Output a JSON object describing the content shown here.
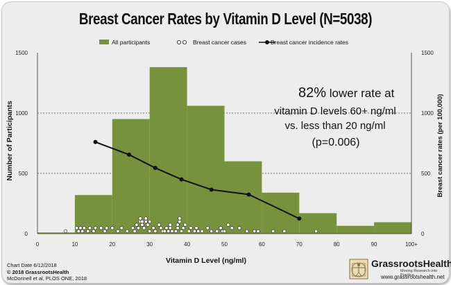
{
  "title": "Breast Cancer Rates by Vitamin D Level (N=5038)",
  "colors": {
    "bar": "#76923c",
    "line": "#111111",
    "dot_fill": "#ffffff",
    "background": "#ededed"
  },
  "annotation": {
    "percent": "82%",
    "line1_rest": " lower rate at",
    "line2": "vitamin D levels 60+ ng/ml",
    "line3": "vs. less than 20 ng/ml",
    "line4": "(p=0.006)"
  },
  "footer": {
    "chart_date": "Chart Date 6/12/2018",
    "copyright": "© 2018 GrassrootsHealth",
    "citation": "McDonnell et al, PLOS ONE, 2018"
  },
  "logo": {
    "icon": "vitruvian-man-icon",
    "name": "GrassrootsHealth",
    "tagline": "Moving Research into Practice",
    "url": "www.grassrootshealth.net"
  },
  "chart_data": {
    "type": "bar",
    "xlabel": "Vitamin D Level (ng/ml)",
    "ylabel_left": "Number of Participants",
    "ylabel_right": "Breast cancer rates (per 100,000)",
    "xlim": [
      0,
      100
    ],
    "ylim_left": [
      0,
      1500
    ],
    "ylim_right": [
      0,
      1500
    ],
    "x_ticks": [
      "0",
      "10",
      "20",
      "30",
      "40",
      "50",
      "60",
      "70",
      "80",
      "90",
      "100+"
    ],
    "x_tick_values": [
      0,
      10,
      20,
      30,
      40,
      50,
      60,
      70,
      80,
      90,
      100
    ],
    "y_ticks_left": [
      "0",
      "500",
      "1000",
      "1500"
    ],
    "y_ticks_right": [
      "0",
      "500",
      "1000",
      "1500"
    ],
    "y_tick_values": [
      0,
      500,
      1000,
      1500
    ],
    "grid": "dashed horizontal at 500, 1000",
    "legend_position": "top",
    "legend": [
      "All participants",
      "Breast cancer cases",
      "Breast cancer incidence rates"
    ],
    "histogram": {
      "name": "All participants",
      "bins": [
        {
          "x0": 0,
          "x1": 10,
          "value": 10
        },
        {
          "x0": 10,
          "x1": 20,
          "value": 320
        },
        {
          "x0": 20,
          "x1": 30,
          "value": 950
        },
        {
          "x0": 30,
          "x1": 40,
          "value": 1380
        },
        {
          "x0": 40,
          "x1": 50,
          "value": 1060
        },
        {
          "x0": 50,
          "x1": 60,
          "value": 600
        },
        {
          "x0": 60,
          "x1": 70,
          "value": 340
        },
        {
          "x0": 70,
          "x1": 80,
          "value": 170
        },
        {
          "x0": 80,
          "x1": 90,
          "value": 65
        },
        {
          "x0": 90,
          "x1": 100,
          "value": 95
        }
      ]
    },
    "incidence_rates": {
      "name": "Breast cancer incidence rates",
      "x": [
        15.5,
        24.5,
        31.5,
        38.5,
        46.5,
        56.5,
        70
      ],
      "y": [
        760,
        655,
        545,
        450,
        365,
        325,
        125
      ]
    },
    "cases": {
      "name": "Breast cancer cases",
      "x": [
        7.5,
        10.5,
        11,
        11.5,
        12,
        12.5,
        13.5,
        14,
        15,
        15.5,
        17,
        18,
        18.5,
        20,
        21.5,
        22.5,
        24,
        25.5,
        26,
        26.5,
        27,
        27.5,
        27.5,
        28,
        28,
        28.5,
        29,
        29,
        29.5,
        30,
        30,
        31,
        31.5,
        32.5,
        33,
        33.5,
        34,
        34.5,
        35,
        35.5,
        35.5,
        36,
        37,
        37.5,
        37.5,
        38,
        38,
        38.5,
        39,
        39.5,
        40.5,
        41,
        42,
        42.5,
        43,
        44,
        45.5,
        46.5,
        48,
        49,
        49.5,
        50,
        51,
        52,
        54,
        56,
        58,
        59,
        63,
        66,
        74.5
      ],
      "level": [
        0,
        1,
        0,
        1,
        0,
        1,
        0,
        1,
        0,
        1,
        1,
        0,
        1,
        1,
        0,
        1,
        0,
        1,
        0,
        2,
        1,
        3,
        4,
        2,
        3,
        1,
        3,
        4,
        2,
        0,
        3,
        1,
        0,
        2,
        1,
        0,
        0,
        1,
        0,
        1,
        2,
        0,
        0,
        1,
        2,
        3,
        4,
        0,
        1,
        2,
        0,
        1,
        0,
        1,
        0,
        0,
        1,
        0,
        0,
        1,
        0,
        0,
        2,
        1,
        1,
        0,
        0,
        0,
        0,
        0,
        0
      ]
    }
  }
}
